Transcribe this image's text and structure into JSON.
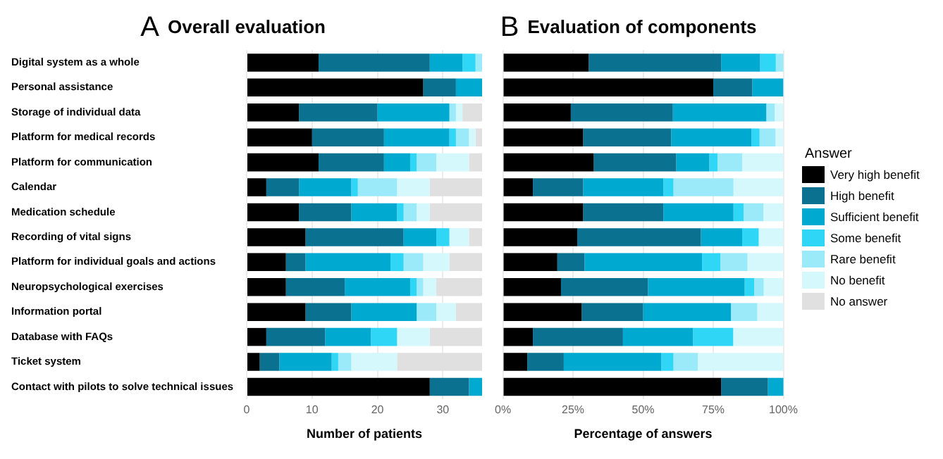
{
  "chart_data": [
    {
      "type": "bar",
      "orientation": "horizontal",
      "stacked": true,
      "title": "Overall evaluation",
      "annotations": [
        "A"
      ],
      "xlabel": "Number of patients",
      "categories": [
        "Digital system as a whole",
        "Personal assistance",
        "Storage of individual data",
        "Platform for medical records",
        "Platform for communication",
        "Calendar",
        "Medication schedule",
        "Recording of vital signs",
        "Platform for individual goals and actions",
        "Neuropsychological exercises",
        "Information portal",
        "Database with FAQs",
        "Ticket system",
        "Contact with pilots to solve technical issues"
      ],
      "xlim": [
        0,
        36
      ],
      "xticks": [
        0,
        10,
        20,
        30
      ],
      "grid": "x",
      "legend": false,
      "series": [
        {
          "color": "#000000",
          "values": [
            11,
            27,
            8,
            10,
            11,
            3,
            8,
            9,
            6,
            6,
            9,
            3,
            2,
            28
          ]
        },
        {
          "color": "#0a7290",
          "values": [
            17,
            5,
            12,
            11,
            10,
            5,
            8,
            15,
            3,
            9,
            7,
            9,
            3,
            6
          ]
        },
        {
          "color": "#00a9cf",
          "values": [
            5,
            4,
            11,
            10,
            4,
            8,
            7,
            5,
            13,
            10,
            10,
            7,
            8,
            2
          ]
        },
        {
          "color": "#2fd6f5",
          "values": [
            2,
            0,
            0,
            1,
            1,
            1,
            1,
            2,
            2,
            1,
            0,
            4,
            1,
            0
          ]
        },
        {
          "color": "#9beafa",
          "values": [
            1,
            0,
            1,
            2,
            3,
            6,
            2,
            0,
            3,
            1,
            3,
            0,
            2,
            0
          ]
        },
        {
          "color": "#d5f8fd",
          "values": [
            0,
            0,
            1,
            1,
            5,
            5,
            2,
            3,
            4,
            2,
            3,
            5,
            7,
            0
          ]
        },
        {
          "color": "#e0e0e0",
          "values": [
            0,
            0,
            3,
            1,
            2,
            8,
            8,
            2,
            5,
            7,
            4,
            8,
            13,
            0
          ]
        }
      ]
    },
    {
      "type": "bar",
      "orientation": "horizontal",
      "stacked": true,
      "title": "Evaluation of components",
      "annotations": [
        "B"
      ],
      "xlabel": "Percentage of answers",
      "legend_title": "Answer",
      "tick_labels": "x",
      "xlim": [
        0,
        100
      ],
      "xticks": [
        {
          "value": 0,
          "label": "0%"
        },
        {
          "value": 25,
          "label": "25%"
        },
        {
          "value": 50,
          "label": "50%"
        },
        {
          "value": 75,
          "label": "75%"
        },
        {
          "value": 100,
          "label": "100%"
        }
      ],
      "grid": "x",
      "legend": "right",
      "series": [
        {
          "name": "Very high benefit",
          "color": "#000000",
          "values": [
            30.6,
            75,
            24.2,
            28.6,
            32.4,
            10.7,
            28.6,
            26.5,
            19.4,
            20.7,
            28.1,
            10.7,
            8.7,
            77.8
          ]
        },
        {
          "name": "High benefit",
          "color": "#0a7290",
          "values": [
            47.2,
            13.9,
            36.4,
            31.4,
            29.4,
            17.9,
            28.6,
            44.1,
            9.7,
            31,
            21.9,
            32.1,
            13,
            16.7
          ]
        },
        {
          "name": "Sufficient benefit",
          "color": "#00a9cf",
          "values": [
            13.9,
            11.1,
            33.3,
            28.6,
            11.8,
            28.6,
            25,
            14.7,
            41.9,
            34.5,
            31.3,
            25,
            34.8,
            5.6
          ]
        },
        {
          "name": "Some benefit",
          "color": "#2fd6f5",
          "values": [
            5.6,
            0,
            0,
            2.9,
            2.9,
            3.6,
            3.6,
            5.9,
            6.5,
            3.4,
            0,
            14.3,
            4.3,
            0
          ]
        },
        {
          "name": "Rare benefit",
          "color": "#9beafa",
          "values": [
            2.8,
            0,
            3,
            5.7,
            8.8,
            21.4,
            7.1,
            0,
            9.7,
            3.4,
            9.4,
            0,
            8.7,
            0
          ]
        },
        {
          "name": "No benefit",
          "color": "#d5f8fd",
          "values": [
            0,
            0,
            3,
            2.9,
            14.7,
            17.9,
            7.1,
            8.8,
            12.9,
            6.9,
            9.4,
            17.9,
            30.4,
            0
          ]
        },
        {
          "name": "No answer",
          "color": "#e0e0e0",
          "values": [
            0,
            0,
            0,
            0,
            0,
            0,
            0,
            0,
            0,
            0,
            0,
            0,
            0,
            0
          ]
        }
      ]
    }
  ]
}
